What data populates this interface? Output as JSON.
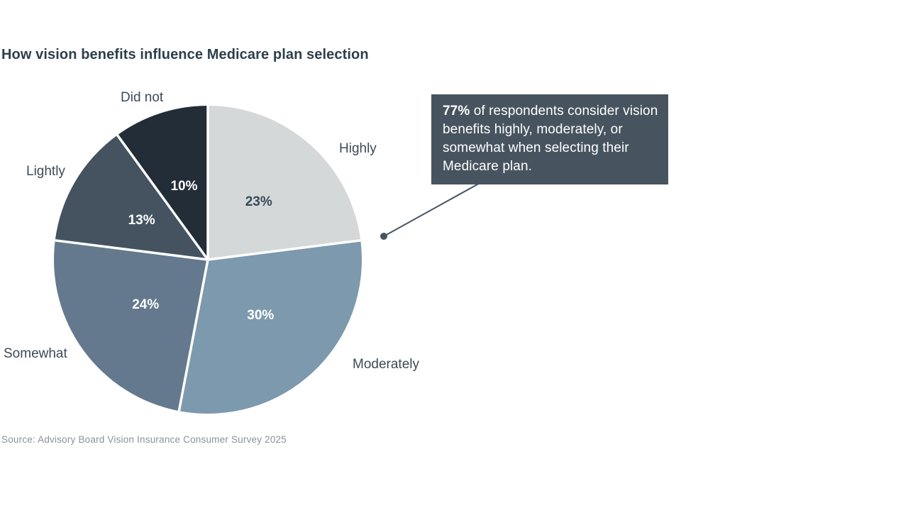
{
  "title": "How vision benefits influence Medicare plan selection",
  "source": "Source: Advisory Board Vision Insurance Consumer Survey 2025",
  "callout": {
    "highlight": "77%",
    "text": " of respondents consider vision benefits highly, moderately, or somewhat when selecting their Medicare plan.",
    "bg_color": "#47545f",
    "text_color": "#ffffff"
  },
  "chart_data": {
    "type": "pie",
    "title": "How vision benefits influence Medicare plan selection",
    "categories": [
      "Highly",
      "Moderately",
      "Somewhat",
      "Lightly",
      "Did not"
    ],
    "values": [
      23,
      30,
      24,
      13,
      10
    ],
    "value_labels": [
      "23%",
      "30%",
      "24%",
      "13%",
      "10%"
    ],
    "slice_colors": [
      "#d4d8d9",
      "#7d99ad",
      "#64798e",
      "#455361",
      "#222d38"
    ],
    "value_label_colors": [
      "#3a4956",
      "#ffffff",
      "#ffffff",
      "#ffffff",
      "#ffffff"
    ],
    "start_angle_deg": 0,
    "direction": "clockwise",
    "divider_color": "#ffffff",
    "legend_position": "labels-outside-slices",
    "annotation": "77% of respondents consider vision benefits highly, moderately, or somewhat when selecting their Medicare plan."
  },
  "colors": {
    "title_text": "#2e3f4c",
    "outer_label_text": "#3c4a57",
    "leader_line": "#47545f",
    "source_text": "#8b9199"
  }
}
